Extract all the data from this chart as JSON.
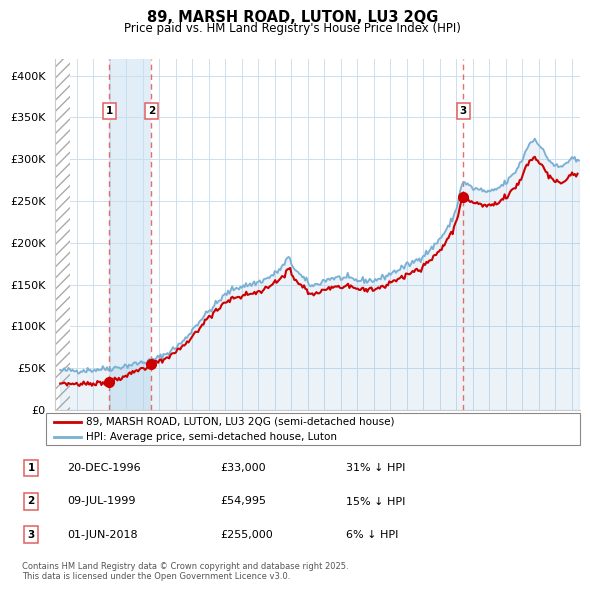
{
  "title": "89, MARSH ROAD, LUTON, LU3 2QG",
  "subtitle": "Price paid vs. HM Land Registry's House Price Index (HPI)",
  "legend_line1": "89, MARSH ROAD, LUTON, LU3 2QG (semi-detached house)",
  "legend_line2": "HPI: Average price, semi-detached house, Luton",
  "sale_color": "#cc0000",
  "hpi_color": "#7ab0d4",
  "hpi_fill_color": "#c5dff0",
  "vline_color": "#e06060",
  "footnote": "Contains HM Land Registry data © Crown copyright and database right 2025.\nThis data is licensed under the Open Government Licence v3.0.",
  "sales": [
    {
      "label": "1",
      "date_num": 1996.97,
      "price": 33000,
      "note": "20-DEC-1996",
      "amount": "£33,000",
      "hpi_note": "31% ↓ HPI"
    },
    {
      "label": "2",
      "date_num": 1999.52,
      "price": 54995,
      "note": "09-JUL-1999",
      "amount": "£54,995",
      "hpi_note": "15% ↓ HPI"
    },
    {
      "label": "3",
      "date_num": 2018.42,
      "price": 255000,
      "note": "01-JUN-2018",
      "amount": "£255,000",
      "hpi_note": "6% ↓ HPI"
    }
  ],
  "ylim": [
    0,
    420000
  ],
  "xlim_start": 1993.7,
  "xlim_end": 2025.5,
  "yticks": [
    0,
    50000,
    100000,
    150000,
    200000,
    250000,
    300000,
    350000,
    400000
  ],
  "ytick_labels": [
    "£0",
    "£50K",
    "£100K",
    "£150K",
    "£200K",
    "£250K",
    "£300K",
    "£350K",
    "£400K"
  ],
  "hatch_end": 1994.58,
  "shade_x1": 1996.97,
  "shade_x2": 1999.52
}
